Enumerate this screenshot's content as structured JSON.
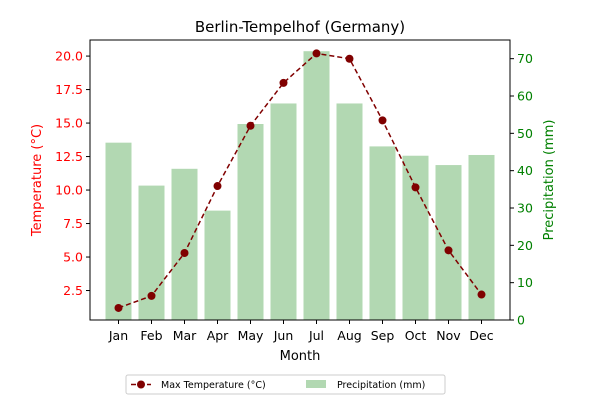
{
  "chart_data": {
    "type": "bar+line",
    "title": "Berlin-Tempelhof (Germany)",
    "xlabel": "Month",
    "categories": [
      "Jan",
      "Feb",
      "Mar",
      "Apr",
      "May",
      "Jun",
      "Jul",
      "Aug",
      "Sep",
      "Oct",
      "Nov",
      "Dec"
    ],
    "y_left": {
      "label": "Temperature (°C)",
      "color": "#ff0000",
      "range": [
        0.3,
        21.2
      ],
      "ticks": [
        2.5,
        5.0,
        7.5,
        10.0,
        12.5,
        15.0,
        17.5,
        20.0
      ],
      "tick_labels": [
        "2.5",
        "5.0",
        "7.5",
        "10.0",
        "12.5",
        "15.0",
        "17.5",
        "20.0"
      ]
    },
    "y_right": {
      "label": "Precipitation (mm)",
      "color": "#008000",
      "range": [
        0,
        75
      ],
      "ticks": [
        0,
        10,
        20,
        30,
        40,
        50,
        60,
        70
      ],
      "tick_labels": [
        "0",
        "10",
        "20",
        "30",
        "40",
        "50",
        "60",
        "70"
      ]
    },
    "series": [
      {
        "name": "Max Temperature (°C)",
        "kind": "line",
        "axis": "left",
        "color": "#800000",
        "values": [
          1.2,
          2.1,
          5.3,
          10.3,
          14.8,
          18.0,
          20.2,
          19.8,
          15.2,
          10.2,
          5.5,
          2.2
        ]
      },
      {
        "name": "Precipitation (mm)",
        "kind": "bar",
        "axis": "right",
        "color": "#b2d8b2",
        "values": [
          47.5,
          36.0,
          40.5,
          29.3,
          52.5,
          58.0,
          72.0,
          58.0,
          46.5,
          44.0,
          41.5,
          44.2
        ]
      }
    ],
    "legend_position": "bottom-center",
    "grid": false
  }
}
